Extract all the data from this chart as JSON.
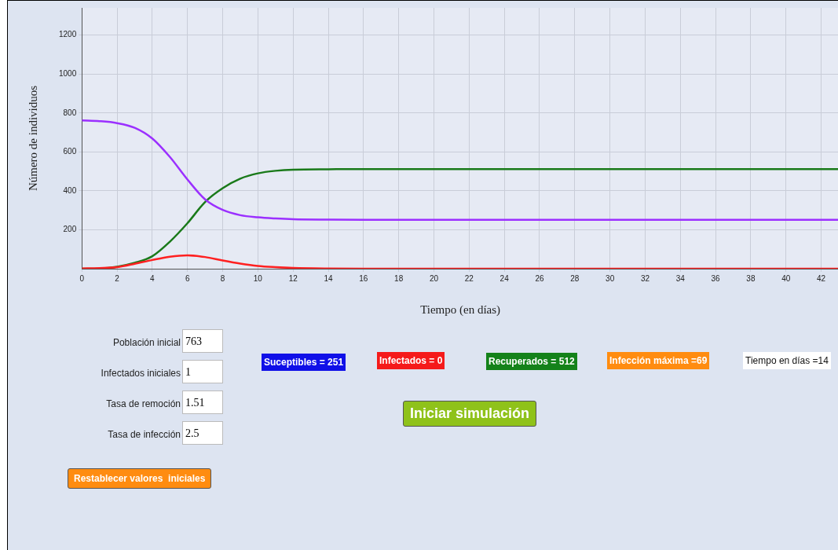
{
  "chart_data": {
    "type": "line",
    "xlabel": "Tiempo (en días)",
    "ylabel": "Número de individuos",
    "x": [
      0,
      1,
      2,
      3,
      4,
      5,
      6,
      7,
      8,
      9,
      10,
      11,
      12,
      14,
      16,
      20,
      30,
      43
    ],
    "series": [
      {
        "color": "#9b30ff",
        "values": [
          762,
          758,
          748,
          724,
          669,
          574,
          458,
          356,
          302,
          275,
          264,
          258,
          254,
          252,
          251,
          251,
          251,
          251
        ]
      },
      {
        "color": "#ff2020",
        "values": [
          1,
          3,
          8,
          25,
          45,
          62,
          69,
          60,
          42,
          26,
          14,
          8,
          4,
          1,
          0,
          0,
          0,
          0
        ]
      },
      {
        "color": "#1a7a1a",
        "values": [
          0,
          1,
          10,
          30,
          64,
          139,
          234,
          343,
          414,
          463,
          490,
          503,
          509,
          511,
          512,
          512,
          512,
          512
        ]
      }
    ],
    "xlim": [
      0,
      43
    ],
    "ylim": [
      0,
      1340
    ],
    "xticks": [
      0,
      2,
      4,
      6,
      8,
      10,
      12,
      14,
      16,
      18,
      20,
      22,
      24,
      26,
      28,
      30,
      32,
      34,
      36,
      38,
      40,
      42
    ],
    "yticks": [
      200,
      400,
      600,
      800,
      1000,
      1200
    ],
    "grid": true,
    "legend": false,
    "marker": "none",
    "line_style": "solid",
    "annotations": [
      "Población inicial",
      "763",
      "Infectados iniciales",
      "1",
      "Tasa de remoción",
      "1.51",
      "Tasa de infección",
      "2.5",
      "Suceptibles = 251",
      "Infectados = 0",
      "Recuperados = 512",
      "Infección máxima =69",
      "Tiempo en días =14",
      "Iniciar simulación",
      "Restablecer valores  iniciales"
    ]
  }
}
